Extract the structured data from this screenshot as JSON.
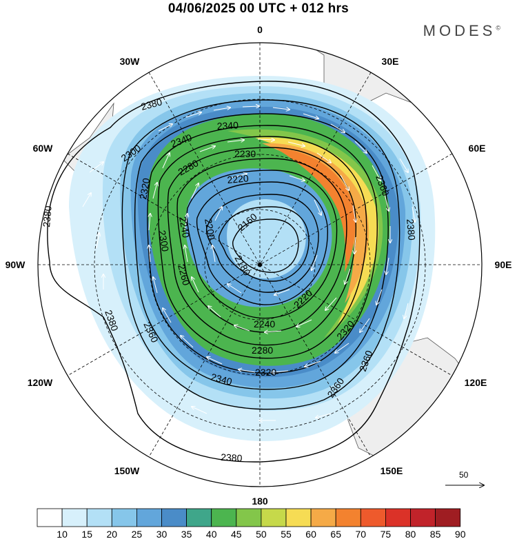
{
  "title": "04/06/2025  00 UTC  + 012 hrs",
  "brand": "MODES",
  "brand_mark": "©",
  "longitude_labels": {
    "n0": "0",
    "w30": "30W",
    "e30": "30E",
    "w60": "60W",
    "e60": "60E",
    "w90": "90W",
    "e90": "90E",
    "w120": "120W",
    "e120": "120E",
    "w150": "150W",
    "e150": "150E",
    "s180": "180"
  },
  "contour_labels": [
    "2380",
    "2380",
    "2380",
    "2380",
    "2380",
    "2360",
    "2360",
    "2360",
    "2360",
    "2340",
    "2340",
    "2340",
    "2320",
    "2320",
    "2320",
    "2300",
    "2300",
    "2280",
    "2280",
    "2260",
    "2240",
    "2240",
    "2230",
    "2220",
    "2220",
    "2200",
    "2180",
    "2160"
  ],
  "reference_vector": {
    "label": "50"
  },
  "colorbar": {
    "levels": [
      "10",
      "15",
      "20",
      "25",
      "30",
      "35",
      "40",
      "45",
      "50",
      "55",
      "60",
      "65",
      "70",
      "75",
      "80",
      "85",
      "90"
    ],
    "colors": [
      "#ffffff",
      "#d7f0fb",
      "#b3e0f6",
      "#86c6ea",
      "#62a6db",
      "#4a8cc8",
      "#3fa68a",
      "#4cb54f",
      "#83c64a",
      "#c6d94a",
      "#f6dc54",
      "#f5aa47",
      "#f3822f",
      "#ee5a2c",
      "#db3228",
      "#c1232a",
      "#9f1d22"
    ]
  },
  "colors": {
    "land": "#eeeeee",
    "coast": "#555555",
    "contour": "#000000",
    "vector": "#ffffff"
  }
}
